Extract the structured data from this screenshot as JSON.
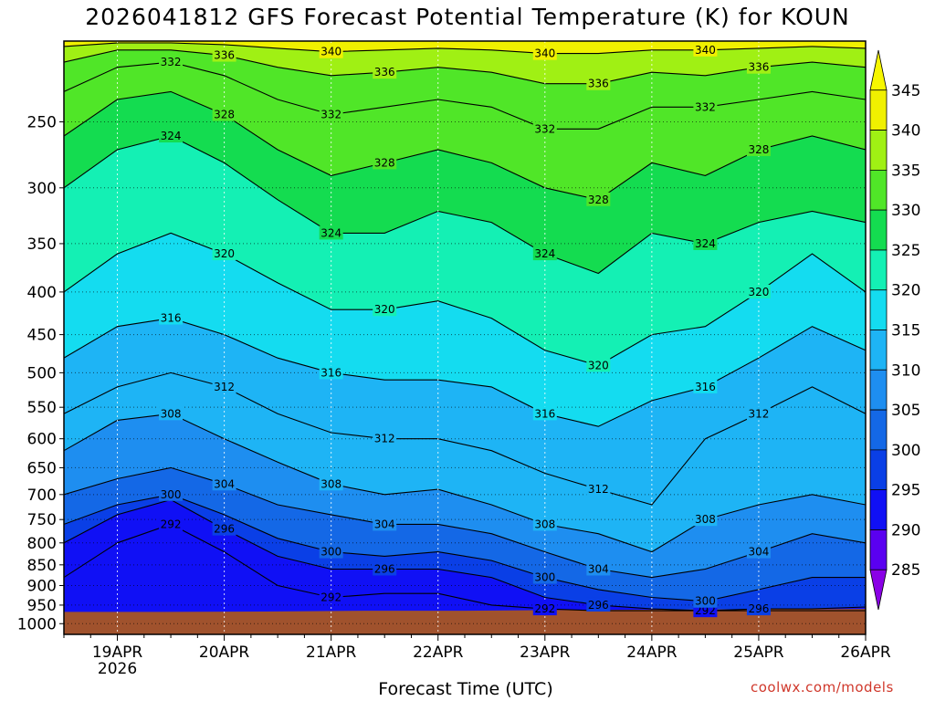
{
  "chart_data": {
    "type": "heatmap",
    "title": "2026041812 GFS Forecast Potential Temperature (K) for KOUN",
    "xlabel": "Forecast Time (UTC)",
    "ylabel": "",
    "x_ticks": [
      "19APR",
      "20APR",
      "21APR",
      "22APR",
      "23APR",
      "24APR",
      "25APR",
      "26APR"
    ],
    "x_sublabel": "2026",
    "x_range": [
      "18APR 12Z",
      "26APR 00Z"
    ],
    "y_ticks": [
      250,
      300,
      350,
      400,
      450,
      500,
      550,
      600,
      650,
      700,
      750,
      800,
      850,
      900,
      950,
      1000
    ],
    "y_range": [
      200,
      1030
    ],
    "y_scale": "log",
    "y_reversed": true,
    "grid": true,
    "colorbar": {
      "levels": [
        285,
        290,
        295,
        300,
        305,
        310,
        315,
        320,
        325,
        330,
        335,
        340,
        345
      ],
      "colors": [
        "#8a00e6",
        "#5a00f0",
        "#1010f5",
        "#0a3fe6",
        "#1468e6",
        "#1e8ef0",
        "#1eb4f5",
        "#14dcf0",
        "#14f0b4",
        "#14dc50",
        "#50e628",
        "#a0f014",
        "#f0f000",
        "#f7f700"
      ],
      "placement": "right"
    },
    "contour_interval": 4,
    "ground_surface_hpa": [
      968,
      968,
      967,
      965,
      965,
      963,
      962,
      961,
      960
    ],
    "ground_times": [
      "18APR 12Z",
      "19APR 12Z",
      "20APR 12Z",
      "21APR 12Z",
      "22APR 12Z",
      "23APR 12Z",
      "24APR 12Z",
      "25APR 12Z",
      "26APR 00Z"
    ],
    "times": [
      "18APR 12Z",
      "19APR 00Z",
      "19APR 12Z",
      "20APR 00Z",
      "20APR 12Z",
      "21APR 00Z",
      "21APR 12Z",
      "22APR 00Z",
      "22APR 12Z",
      "23APR 00Z",
      "23APR 12Z",
      "24APR 00Z",
      "24APR 12Z",
      "25APR 00Z",
      "25APR 12Z",
      "26APR 00Z"
    ],
    "isentrope_pressures_hpa": [
      {
        "theta": 292,
        "values": [
          880,
          800,
          760,
          820,
          900,
          930,
          920,
          920,
          950,
          960,
          965,
          965,
          965,
          965,
          965,
          965
        ]
      },
      {
        "theta": 296,
        "values": [
          800,
          740,
          710,
          770,
          830,
          860,
          860,
          860,
          880,
          930,
          950,
          960,
          965,
          960,
          960,
          955
        ]
      },
      {
        "theta": 300,
        "values": [
          760,
          720,
          700,
          740,
          790,
          820,
          830,
          820,
          840,
          880,
          910,
          930,
          940,
          910,
          880,
          880
        ]
      },
      {
        "theta": 304,
        "values": [
          700,
          670,
          650,
          680,
          720,
          740,
          760,
          760,
          780,
          820,
          860,
          880,
          860,
          820,
          780,
          800
        ]
      },
      {
        "theta": 308,
        "values": [
          620,
          570,
          560,
          600,
          640,
          680,
          700,
          690,
          720,
          760,
          780,
          820,
          750,
          720,
          700,
          720
        ]
      },
      {
        "theta": 312,
        "values": [
          560,
          520,
          500,
          520,
          560,
          590,
          600,
          600,
          620,
          660,
          690,
          720,
          600,
          560,
          520,
          560
        ]
      },
      {
        "theta": 316,
        "values": [
          480,
          440,
          430,
          450,
          480,
          500,
          510,
          510,
          520,
          560,
          580,
          540,
          520,
          480,
          440,
          470
        ]
      },
      {
        "theta": 320,
        "values": [
          400,
          360,
          340,
          360,
          390,
          420,
          420,
          410,
          430,
          470,
          490,
          450,
          440,
          400,
          360,
          400
        ]
      },
      {
        "theta": 324,
        "values": [
          300,
          270,
          260,
          280,
          310,
          340,
          340,
          320,
          330,
          360,
          380,
          340,
          350,
          330,
          320,
          330
        ]
      },
      {
        "theta": 328,
        "values": [
          260,
          235,
          230,
          245,
          270,
          290,
          280,
          270,
          280,
          300,
          310,
          280,
          290,
          270,
          260,
          270
        ]
      },
      {
        "theta": 332,
        "values": [
          230,
          215,
          212,
          220,
          235,
          245,
          240,
          235,
          240,
          255,
          255,
          240,
          240,
          235,
          230,
          235
        ]
      },
      {
        "theta": 336,
        "values": [
          212,
          205,
          205,
          208,
          215,
          220,
          218,
          215,
          218,
          225,
          225,
          218,
          220,
          215,
          212,
          215
        ]
      },
      {
        "theta": 340,
        "values": [
          203,
          201,
          201,
          202,
          204,
          206,
          205,
          204,
          205,
          207,
          207,
          205,
          205,
          204,
          203,
          204
        ]
      }
    ]
  },
  "colorbar_labels": [
    "345",
    "340",
    "335",
    "330",
    "325",
    "320",
    "315",
    "310",
    "305",
    "300",
    "295",
    "290",
    "285"
  ],
  "credit": "coolwx.com/models"
}
